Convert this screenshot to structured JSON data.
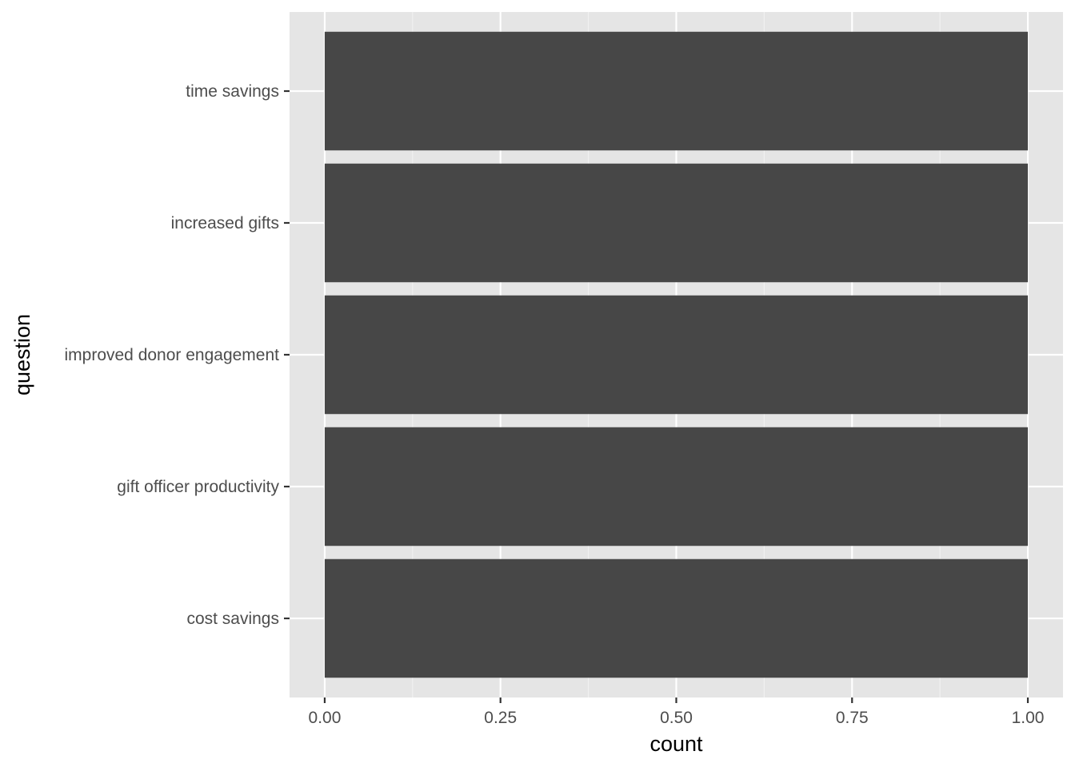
{
  "chart_data": {
    "type": "bar",
    "orientation": "horizontal",
    "categories": [
      "cost savings",
      "gift officer productivity",
      "improved donor engagement",
      "increased gifts",
      "time savings"
    ],
    "values": [
      1,
      1,
      1,
      1,
      1
    ],
    "xlabel": "count",
    "ylabel": "question",
    "xlim": [
      -0.05,
      1.05
    ],
    "x_ticks": [
      0,
      0.25,
      0.5,
      0.75,
      1.0
    ],
    "x_tick_labels": [
      "0.00",
      "0.25",
      "0.50",
      "0.75",
      "1.00"
    ],
    "grid": true,
    "legend": "none"
  },
  "colors": {
    "panel_background": "#e5e5e5",
    "grid_major": "#ffffff",
    "grid_minor": "#f2f2f2",
    "bar_fill": "#474747",
    "tick_text": "#4d4d4d",
    "axis_title": "#000000"
  }
}
